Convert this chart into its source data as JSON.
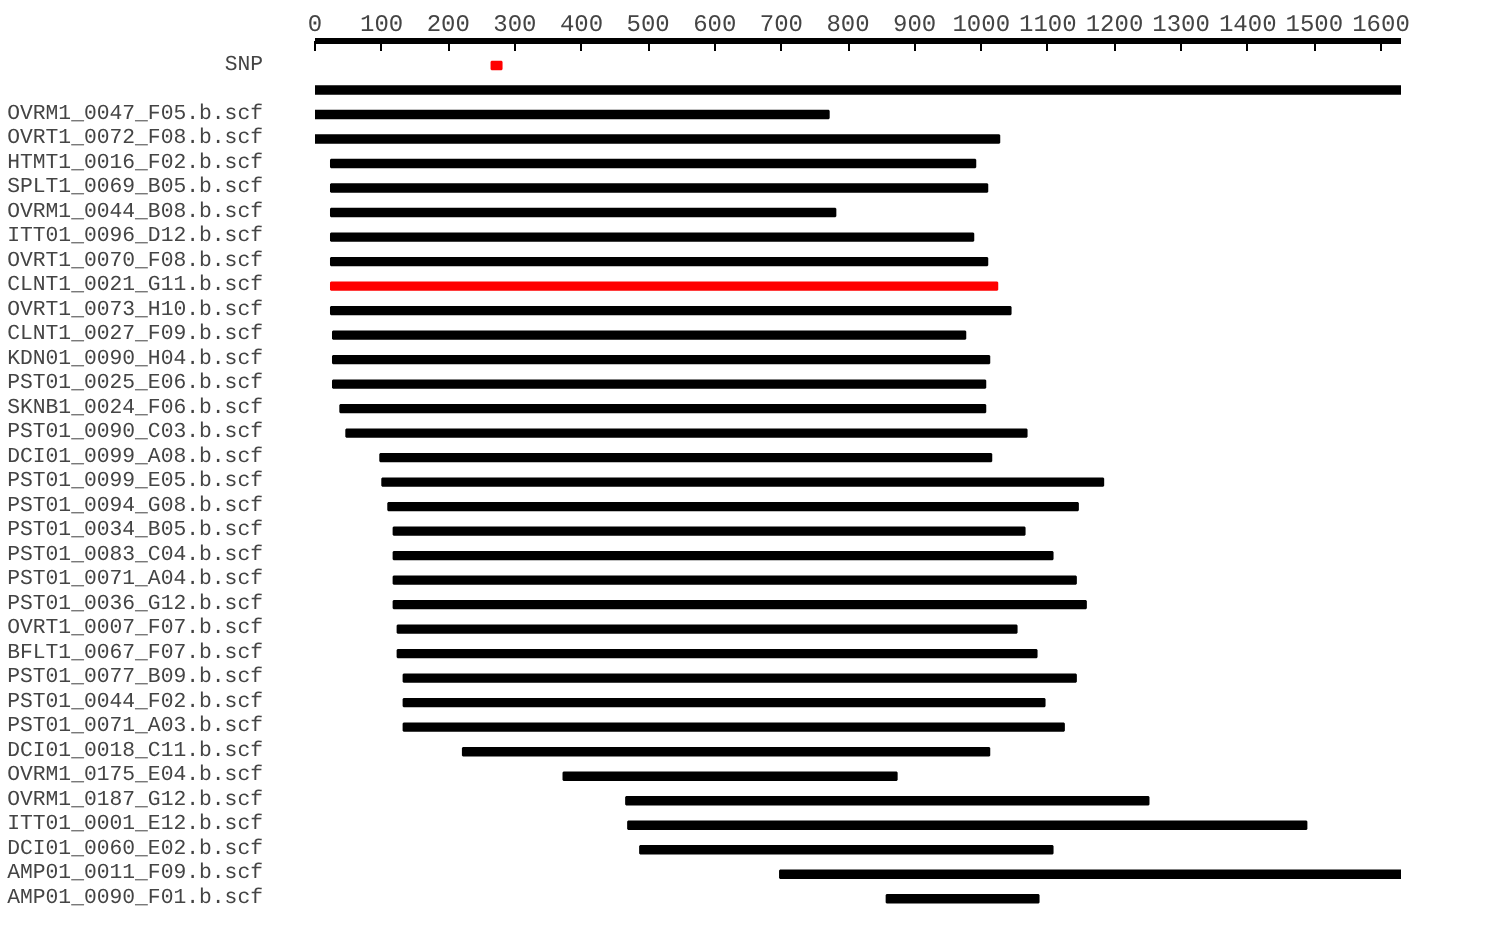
{
  "chart_data": {
    "type": "bar",
    "orientation": "horizontal",
    "categories": [
      "SNP",
      null,
      "OVRM1_0047_F05.b.scf",
      "OVRT1_0072_F08.b.scf",
      "HTMT1_0016_F02.b.scf",
      "SPLT1_0069_B05.b.scf",
      "OVRM1_0044_B08.b.scf",
      "ITT01_0096_D12.b.scf",
      "OVRT1_0070_F08.b.scf",
      "CLNT1_0021_G11.b.scf",
      "OVRT1_0073_H10.b.scf",
      "CLNT1_0027_F09.b.scf",
      "KDN01_0090_H04.b.scf",
      "PST01_0025_E06.b.scf",
      "SKNB1_0024_F06.b.scf",
      "PST01_0090_C03.b.scf",
      "DCI01_0099_A08.b.scf",
      "PST01_0099_E05.b.scf",
      "PST01_0094_G08.b.scf",
      "PST01_0034_B05.b.scf",
      "PST01_0083_C04.b.scf",
      "PST01_0071_A04.b.scf",
      "PST01_0036_G12.b.scf",
      "OVRT1_0007_F07.b.scf",
      "BFLT1_0067_F07.b.scf",
      "PST01_0077_B09.b.scf",
      "PST01_0044_F02.b.scf",
      "PST01_0071_A03.b.scf",
      "DCI01_0018_C11.b.scf",
      "OVRM1_0175_E04.b.scf",
      "OVRM1_0187_G12.b.scf",
      "ITT01_0001_E12.b.scf",
      "DCI01_0060_E02.b.scf",
      "AMP01_0011_F09.b.scf",
      "AMP01_0090_F01.b.scf"
    ],
    "base": [
      265,
      0,
      0,
      0,
      24,
      24,
      24,
      24,
      24,
      24,
      24,
      27,
      27,
      27,
      38,
      47,
      98,
      101,
      110,
      118,
      118,
      118,
      118,
      124,
      124,
      133,
      133,
      133,
      222,
      373,
      467,
      470,
      488,
      698,
      858
    ],
    "values": [
      15,
      1630,
      771,
      1027,
      967,
      985,
      757,
      964,
      985,
      1000,
      1020,
      949,
      985,
      979,
      968,
      1021,
      917,
      1082,
      1035,
      947,
      989,
      1024,
      1039,
      929,
      959,
      1009,
      962,
      991,
      790,
      500,
      784,
      1018,
      619,
      932,
      228
    ],
    "colors": [
      "#ff0000",
      "#000000",
      "#000000",
      "#000000",
      "#000000",
      "#000000",
      "#000000",
      "#000000",
      "#000000",
      "#ff0000",
      "#000000",
      "#000000",
      "#000000",
      "#000000",
      "#000000",
      "#000000",
      "#000000",
      "#000000",
      "#000000",
      "#000000",
      "#000000",
      "#000000",
      "#000000",
      "#000000",
      "#000000",
      "#000000",
      "#000000",
      "#000000",
      "#000000",
      "#000000",
      "#000000",
      "#000000",
      "#000000",
      "#000000",
      "#000000"
    ],
    "xlim": [
      0,
      1630
    ],
    "xticks": [
      0,
      100,
      200,
      300,
      400,
      500,
      600,
      700,
      800,
      900,
      1000,
      1100,
      1200,
      1300,
      1400,
      1500,
      1600
    ],
    "grid": false
  }
}
